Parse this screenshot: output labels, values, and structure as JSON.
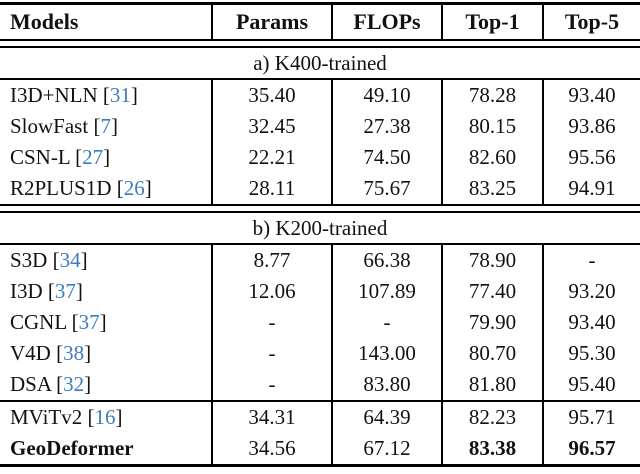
{
  "accent": {
    "citation_color": "#3c7cbe",
    "border_color": "#000000",
    "text_color": "#111111",
    "background_color": "#ffffff"
  },
  "table": {
    "columns": [
      "Models",
      "Params",
      "FLOPs",
      "Top-1",
      "Top-5"
    ],
    "sections": [
      {
        "title": "a) K400-trained",
        "groups": [
          [
            {
              "model": "I3D+NLN",
              "cite": "31",
              "params": "35.40",
              "flops": "49.10",
              "top1": "78.28",
              "top5": "93.40"
            },
            {
              "model": "SlowFast",
              "cite": "7",
              "params": "32.45",
              "flops": "27.38",
              "top1": "80.15",
              "top5": "93.86"
            },
            {
              "model": "CSN-L",
              "cite": "27",
              "params": "22.21",
              "flops": "74.50",
              "top1": "82.60",
              "top5": "95.56"
            },
            {
              "model": "R2PLUS1D",
              "cite": "26",
              "params": "28.11",
              "flops": "75.67",
              "top1": "83.25",
              "top5": "94.91"
            }
          ]
        ]
      },
      {
        "title": "b) K200-trained",
        "groups": [
          [
            {
              "model": "S3D",
              "cite": "34",
              "params": "8.77",
              "flops": "66.38",
              "top1": "78.90",
              "top5": "-"
            },
            {
              "model": "I3D",
              "cite": "37",
              "params": "12.06",
              "flops": "107.89",
              "top1": "77.40",
              "top5": "93.20"
            },
            {
              "model": "CGNL",
              "cite": "37",
              "params": "-",
              "flops": "-",
              "top1": "79.90",
              "top5": "93.40"
            },
            {
              "model": "V4D",
              "cite": "38",
              "params": "-",
              "flops": "143.00",
              "top1": "80.70",
              "top5": "95.30"
            },
            {
              "model": "DSA",
              "cite": "32",
              "params": "-",
              "flops": "83.80",
              "top1": "81.80",
              "top5": "95.40"
            }
          ],
          [
            {
              "model": "MViTv2",
              "cite": "16",
              "params": "34.31",
              "flops": "64.39",
              "top1": "82.23",
              "top5": "95.71"
            },
            {
              "model": "GeoDeformer",
              "cite": null,
              "params": "34.56",
              "flops": "67.12",
              "top1": "83.38",
              "top5": "96.57",
              "bold_model": true,
              "bold_top1": true,
              "bold_top5": true
            }
          ]
        ]
      }
    ]
  }
}
